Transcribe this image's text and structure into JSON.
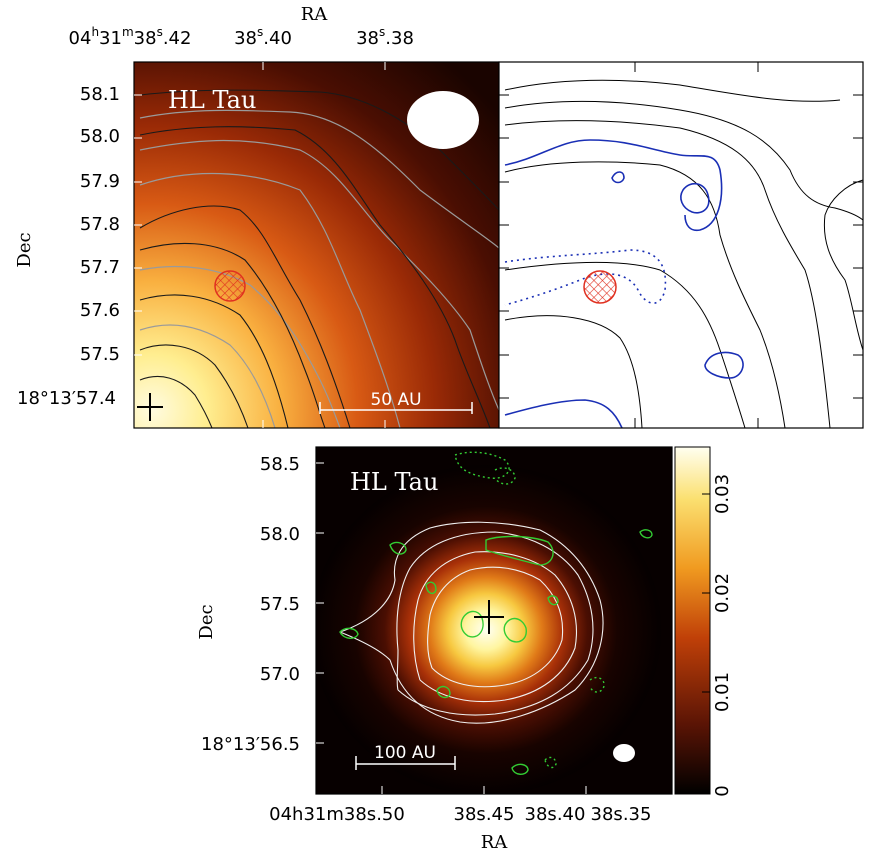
{
  "top_panel": {
    "ra_axis_title": "RA",
    "ra_ticks": [
      {
        "h": "04",
        "m": "31",
        "s": "38",
        "frac": ".42",
        "full": true
      },
      {
        "s": "38",
        "frac": ".40"
      },
      {
        "s": "38",
        "frac": ".38"
      }
    ],
    "dec_axis_title": "Dec",
    "dec_ticks": [
      {
        "label": "58.1"
      },
      {
        "label": "58.0"
      },
      {
        "label": "57.9"
      },
      {
        "label": "57.8"
      },
      {
        "label": "57.7"
      },
      {
        "label": "57.6"
      },
      {
        "label": "57.5"
      },
      {
        "label": "18°13′57.4"
      }
    ],
    "object_name": "HL Tau",
    "scale_bar": "50 AU"
  },
  "bottom_panel": {
    "object_name": "HL Tau",
    "scale_bar": "100 AU",
    "ra_axis_title": "RA",
    "ra_ticks": [
      {
        "label": "04h31m38s.50"
      },
      {
        "label": "38s.45"
      },
      {
        "label": "38s.40"
      },
      {
        "label": "38s.35"
      }
    ],
    "dec_axis_title": "Dec",
    "dec_ticks": [
      {
        "label": "58.5"
      },
      {
        "label": "58.0"
      },
      {
        "label": "57.5"
      },
      {
        "label": "57.0"
      },
      {
        "label": "18°13′56.5"
      }
    ],
    "colorbar_ticks": [
      "0.03",
      "0.02",
      "0.01",
      "0"
    ]
  },
  "colors": {
    "contour_blue": "#1a2fb5",
    "contour_green": "#33cc33",
    "beam_red": "#e03020"
  }
}
